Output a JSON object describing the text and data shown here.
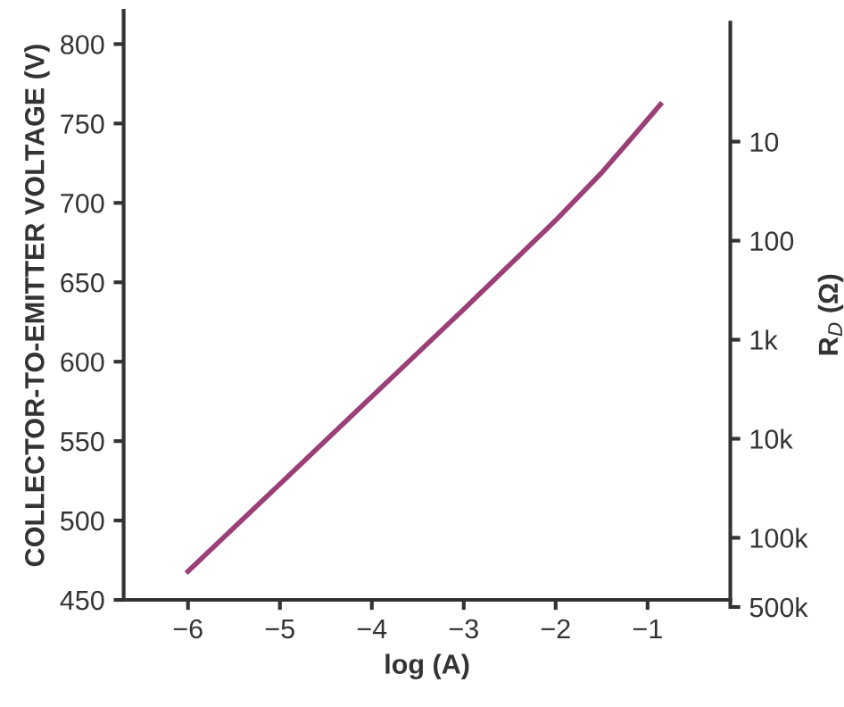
{
  "chart_data": {
    "type": "line",
    "xlabel": "log (A)",
    "ylabel": "COLLECTOR-TO-EMITTER VOLTAGE (V)",
    "y2label": "R$_{D}$ (Ω)",
    "x": [
      -6,
      -5,
      -4,
      -3,
      -2,
      -1.5,
      -1.2,
      -0.86
    ],
    "series": [
      {
        "color": "#9b3f78",
        "values": [
          468,
          523,
          578,
          633,
          689,
          719,
          739,
          762
        ]
      }
    ],
    "xlim": [
      -6.7,
      -0.1
    ],
    "xticks": [
      {
        "value": -6,
        "label": "−6"
      },
      {
        "value": -5,
        "label": "−5"
      },
      {
        "value": -4,
        "label": "−4"
      },
      {
        "value": -3,
        "label": "−3"
      },
      {
        "value": -2,
        "label": "−2"
      },
      {
        "value": -1,
        "label": "−1"
      }
    ],
    "ylim": [
      450,
      821
    ],
    "yticks": [
      450,
      500,
      550,
      600,
      650,
      700,
      750,
      800
    ],
    "log": "y2",
    "y2lim": [
      500000,
      0.63
    ],
    "y2ticks": [
      {
        "value": 10,
        "label": "10"
      },
      {
        "value": 100,
        "label": "100"
      },
      {
        "value": 1000,
        "label": "1k"
      },
      {
        "value": 10000,
        "label": "10k"
      },
      {
        "value": 100000,
        "label": "100k"
      },
      {
        "value": 500000,
        "label": "500k"
      }
    ],
    "marker": "none",
    "line_style": "solid"
  }
}
